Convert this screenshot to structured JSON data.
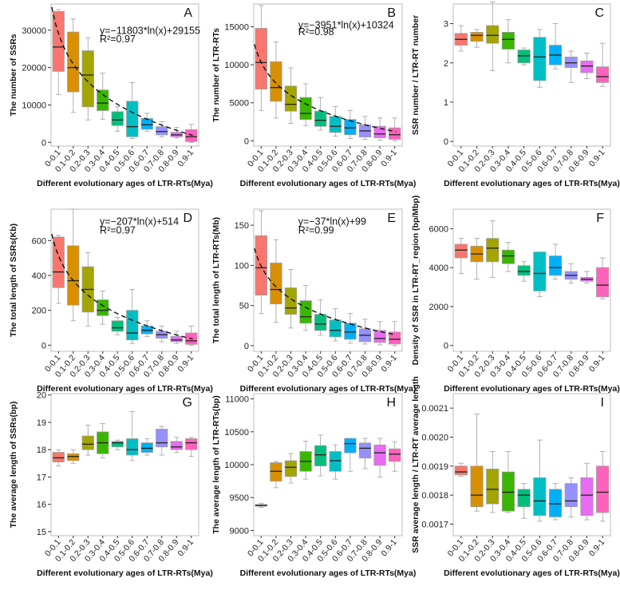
{
  "figure": {
    "colors": [
      "#F8766D",
      "#D89000",
      "#A3A500",
      "#39B600",
      "#00BF7D",
      "#00BFC4",
      "#00B0F6",
      "#9590FF",
      "#E76BF3",
      "#FF62BC"
    ]
  },
  "chart_data": [
    {
      "id": "A",
      "type": "box",
      "panel_label": "A",
      "ylabel": "The number of SSRs",
      "xlabel": "Different evolutionary ages of LTR-RTs(Mya)",
      "ylim": [
        -1000,
        37000
      ],
      "yticks": [
        0,
        10000,
        20000,
        30000
      ],
      "categories": [
        "0-0.1",
        "0.1-0.2",
        "0.2-0.3",
        "0.3-0.4",
        "0.4-0.5",
        "0.5-0.6",
        "0.6-0.7",
        "0.7-0.8",
        "0.8-0.9",
        "0.9-1"
      ],
      "boxes": [
        {
          "whisker_low": 12800,
          "q1": 19000,
          "median": 25500,
          "q3": 35000,
          "whisker_high": 35500
        },
        {
          "whisker_low": 8000,
          "q1": 13500,
          "median": 20000,
          "q3": 29500,
          "whisker_high": 33000
        },
        {
          "whisker_low": 6000,
          "q1": 9500,
          "median": 18000,
          "q3": 24500,
          "whisker_high": 28000
        },
        {
          "whisker_low": 6200,
          "q1": 8500,
          "median": 10500,
          "q3": 14000,
          "whisker_high": 18500
        },
        {
          "whisker_low": 3000,
          "q1": 4500,
          "median": 6000,
          "q3": 8200,
          "whisker_high": 9500
        },
        {
          "whisker_low": 1000,
          "q1": 1500,
          "median": 4200,
          "q3": 11000,
          "whisker_high": 16000
        },
        {
          "whisker_low": 3000,
          "q1": 3500,
          "median": 4700,
          "q3": 6400,
          "whisker_high": 7800
        },
        {
          "whisker_low": 1500,
          "q1": 2000,
          "median": 2900,
          "q3": 4200,
          "whisker_high": 5500
        },
        {
          "whisker_low": 1200,
          "q1": 1500,
          "median": 2000,
          "q3": 2700,
          "whisker_high": 4000
        },
        {
          "whisker_low": 0,
          "q1": 200,
          "median": 1500,
          "q3": 3400,
          "whisker_high": 4800
        }
      ],
      "fit": {
        "a": -11803,
        "b": 29155
      },
      "annotation": [
        "y=−11803*ln(x)+29155",
        "R²=0.97"
      ]
    },
    {
      "id": "B",
      "type": "box",
      "panel_label": "B",
      "ylabel": "The number of LTR-RTs",
      "xlabel": "Different evolutionary ages of LTR-RTs(Mya)",
      "ylim": [
        -700,
        18000
      ],
      "yticks": [
        0,
        5000,
        10000,
        15000
      ],
      "categories": [
        "0-0.1",
        "0.1-0.2",
        "0.2-0.3",
        "0.3-0.4",
        "0.4-0.5",
        "0.5-0.6",
        "0.6-0.7",
        "0.7-0.8",
        "0.8-0.9",
        "0.9-1"
      ],
      "boxes": [
        {
          "whisker_low": 4000,
          "q1": 6800,
          "median": 10300,
          "q3": 14800,
          "whisker_high": 17800
        },
        {
          "whisker_low": 3000,
          "q1": 5200,
          "median": 7000,
          "q3": 10400,
          "whisker_high": 13000
        },
        {
          "whisker_low": 2300,
          "q1": 3900,
          "median": 4800,
          "q3": 7200,
          "whisker_high": 9600
        },
        {
          "whisker_low": 2000,
          "q1": 2800,
          "median": 3600,
          "q3": 5700,
          "whisker_high": 7500
        },
        {
          "whisker_low": 1400,
          "q1": 1900,
          "median": 2700,
          "q3": 3900,
          "whisker_high": 5700
        },
        {
          "whisker_low": 600,
          "q1": 1100,
          "median": 1900,
          "q3": 3200,
          "whisker_high": 4500
        },
        {
          "whisker_low": 300,
          "q1": 800,
          "median": 1700,
          "q3": 2800,
          "whisker_high": 4000
        },
        {
          "whisker_low": 200,
          "q1": 500,
          "median": 1300,
          "q3": 2100,
          "whisker_high": 3200
        },
        {
          "whisker_low": 100,
          "q1": 400,
          "median": 900,
          "q3": 1900,
          "whisker_high": 3000
        },
        {
          "whisker_low": 0,
          "q1": 200,
          "median": 800,
          "q3": 1700,
          "whisker_high": 3000
        }
      ],
      "fit": {
        "a": -3951,
        "b": 10324
      },
      "annotation": [
        "y=−3951*ln(x)+10324",
        "R²=0.98"
      ]
    },
    {
      "id": "C",
      "type": "box",
      "panel_label": "C",
      "ylabel": "SSR number / LTR-RT number",
      "xlabel": "Different evolutionary ages of LTR-RTs(Mya)",
      "ylim": [
        -0.12,
        3.5
      ],
      "yticks": [
        0,
        1,
        2,
        3
      ],
      "categories": [
        "0-0.1",
        "0.1-0.2",
        "0.2-0.3",
        "0.3-0.4",
        "0.4-0.5",
        "0.5-0.6",
        "0.6-0.7",
        "0.7-0.8",
        "0.8-0.9",
        "0.9-1"
      ],
      "boxes": [
        {
          "whisker_low": 2.3,
          "q1": 2.45,
          "median": 2.6,
          "q3": 2.75,
          "whisker_high": 2.95
        },
        {
          "whisker_low": 2.4,
          "q1": 2.55,
          "median": 2.7,
          "q3": 2.78,
          "whisker_high": 2.85
        },
        {
          "whisker_low": 1.8,
          "q1": 2.5,
          "median": 2.7,
          "q3": 2.95,
          "whisker_high": 3.55
        },
        {
          "whisker_low": 2.0,
          "q1": 2.35,
          "median": 2.6,
          "q3": 2.78,
          "whisker_high": 3.1
        },
        {
          "whisker_low": 1.95,
          "q1": 2.0,
          "median": 2.18,
          "q3": 2.33,
          "whisker_high": 2.38
        },
        {
          "whisker_low": 1.38,
          "q1": 1.55,
          "median": 2.15,
          "q3": 2.65,
          "whisker_high": 2.85
        },
        {
          "whisker_low": 1.85,
          "q1": 1.95,
          "median": 2.2,
          "q3": 2.45,
          "whisker_high": 3.0
        },
        {
          "whisker_low": 1.5,
          "q1": 1.88,
          "median": 2.0,
          "q3": 2.15,
          "whisker_high": 2.3
        },
        {
          "whisker_low": 1.6,
          "q1": 1.75,
          "median": 1.92,
          "q3": 2.05,
          "whisker_high": 2.25
        },
        {
          "whisker_low": 1.4,
          "q1": 1.5,
          "median": 1.65,
          "q3": 1.9,
          "whisker_high": 2.5
        }
      ]
    },
    {
      "id": "D",
      "type": "box",
      "panel_label": "D",
      "ylabel": "The total length of SSRs(Kb)",
      "xlabel": "Different evolutionary ages of LTR-RTs(Mya)",
      "ylim": [
        -35,
        780
      ],
      "yticks": [
        0,
        200,
        400,
        600
      ],
      "categories": [
        "0-0.1",
        "0.1-0.2",
        "0.2-0.3",
        "0.3-0.4",
        "0.4-0.5",
        "0.5-0.6",
        "0.6-0.7",
        "0.7-0.8",
        "0.8-0.9",
        "0.9-1"
      ],
      "boxes": [
        {
          "whisker_low": 240,
          "q1": 330,
          "median": 420,
          "q3": 620,
          "whisker_high": 630
        },
        {
          "whisker_low": 140,
          "q1": 230,
          "median": 370,
          "q3": 570,
          "whisker_high": 780
        },
        {
          "whisker_low": 110,
          "q1": 190,
          "median": 320,
          "q3": 450,
          "whisker_high": 530
        },
        {
          "whisker_low": 120,
          "q1": 170,
          "median": 200,
          "q3": 260,
          "whisker_high": 310
        },
        {
          "whisker_low": 60,
          "q1": 80,
          "median": 100,
          "q3": 140,
          "whisker_high": 160
        },
        {
          "whisker_low": 10,
          "q1": 30,
          "median": 70,
          "q3": 200,
          "whisker_high": 320
        },
        {
          "whisker_low": 50,
          "q1": 65,
          "median": 85,
          "q3": 110,
          "whisker_high": 140
        },
        {
          "whisker_low": 20,
          "q1": 40,
          "median": 60,
          "q3": 80,
          "whisker_high": 110
        },
        {
          "whisker_low": 10,
          "q1": 20,
          "median": 30,
          "q3": 50,
          "whisker_high": 80
        },
        {
          "whisker_low": 0,
          "q1": 5,
          "median": 25,
          "q3": 70,
          "whisker_high": 110
        }
      ],
      "fit": {
        "a": -207,
        "b": 514
      },
      "annotation": [
        "y=−207*ln(x)+514",
        "R²=0.97"
      ]
    },
    {
      "id": "E",
      "type": "box",
      "panel_label": "E",
      "ylabel": "The total length of LTR-RTs(Mb)",
      "xlabel": "Different evolutionary ages of LTR-RTs(Mya)",
      "ylim": [
        -7,
        170
      ],
      "yticks": [
        0,
        50,
        100,
        150
      ],
      "categories": [
        "0-0.1",
        "0.1-0.2",
        "0.2-0.3",
        "0.3-0.4",
        "0.4-0.5",
        "0.5-0.6",
        "0.6-0.7",
        "0.7-0.8",
        "0.8-0.9",
        "0.9-1"
      ],
      "boxes": [
        {
          "whisker_low": 40,
          "q1": 63,
          "median": 97,
          "q3": 137,
          "whisker_high": 168
        },
        {
          "whisker_low": 29,
          "q1": 52,
          "median": 70,
          "q3": 103,
          "whisker_high": 132
        },
        {
          "whisker_low": 22,
          "q1": 39,
          "median": 47,
          "q3": 72,
          "whisker_high": 95
        },
        {
          "whisker_low": 19,
          "q1": 28,
          "median": 36,
          "q3": 56,
          "whisker_high": 75
        },
        {
          "whisker_low": 13,
          "q1": 19,
          "median": 27,
          "q3": 39,
          "whisker_high": 57
        },
        {
          "whisker_low": 6,
          "q1": 11,
          "median": 19,
          "q3": 32,
          "whisker_high": 46
        },
        {
          "whisker_low": 3,
          "q1": 8,
          "median": 17,
          "q3": 28,
          "whisker_high": 40
        },
        {
          "whisker_low": 2,
          "q1": 5,
          "median": 13,
          "q3": 21,
          "whisker_high": 33
        },
        {
          "whisker_low": 1,
          "q1": 4,
          "median": 9,
          "q3": 19,
          "whisker_high": 30
        },
        {
          "whisker_low": 0,
          "q1": 2,
          "median": 8,
          "q3": 17,
          "whisker_high": 30
        }
      ],
      "fit": {
        "a": -37,
        "b": 99
      },
      "annotation": [
        "y=−37*ln(x)+99",
        "R²=0.99"
      ]
    },
    {
      "id": "F",
      "type": "box",
      "panel_label": "F",
      "ylabel": "Density of SSR in LTR-RT_region (bp/Mbp)",
      "xlabel": "Different evolutionary ages of LTR-RTs(Mya)",
      "ylim": [
        -300,
        7000
      ],
      "yticks": [
        0,
        2000,
        4000,
        6000
      ],
      "categories": [
        "0-0.1",
        "0.1-0.2",
        "0.2-0.3",
        "0.3-0.4",
        "0.4-0.5",
        "0.5-0.6",
        "0.6-0.7",
        "0.7-0.8",
        "0.8-0.9",
        "0.9-1"
      ],
      "boxes": [
        {
          "whisker_low": 3700,
          "q1": 4500,
          "median": 4900,
          "q3": 5200,
          "whisker_high": 5500
        },
        {
          "whisker_low": 3400,
          "q1": 4300,
          "median": 4700,
          "q3": 5100,
          "whisker_high": 5500
        },
        {
          "whisker_low": 3500,
          "q1": 4300,
          "median": 5000,
          "q3": 5500,
          "whisker_high": 6400
        },
        {
          "whisker_low": 3800,
          "q1": 4200,
          "median": 4600,
          "q3": 4900,
          "whisker_high": 5300
        },
        {
          "whisker_low": 3300,
          "q1": 3600,
          "median": 3800,
          "q3": 4100,
          "whisker_high": 4300
        },
        {
          "whisker_low": 2500,
          "q1": 2800,
          "median": 3700,
          "q3": 4800,
          "whisker_high": 4800
        },
        {
          "whisker_low": 3400,
          "q1": 3600,
          "median": 4000,
          "q3": 4600,
          "whisker_high": 5200
        },
        {
          "whisker_low": 3200,
          "q1": 3400,
          "median": 3600,
          "q3": 3800,
          "whisker_high": 4200
        },
        {
          "whisker_low": 3200,
          "q1": 3300,
          "median": 3400,
          "q3": 3500,
          "whisker_high": 3800
        },
        {
          "whisker_low": 2400,
          "q1": 2500,
          "median": 3100,
          "q3": 4000,
          "whisker_high": 4500
        }
      ]
    },
    {
      "id": "G",
      "type": "box",
      "panel_label": "G",
      "ylabel": "The average length of SSRs(bp)",
      "xlabel": "Different evolutionary ages of LTR-RTs(Mya)",
      "ylim": [
        14.85,
        20.05
      ],
      "yticks": [
        15,
        16,
        17,
        18,
        19,
        20
      ],
      "categories": [
        "0-0.1",
        "0.1-0.2",
        "0.2-0.3",
        "0.3-0.4",
        "0.4-0.5",
        "0.5-0.6",
        "0.6-0.7",
        "0.7-0.8",
        "0.8-0.9",
        "0.9-1"
      ],
      "boxes": [
        {
          "whisker_low": 17.4,
          "q1": 17.55,
          "median": 17.7,
          "q3": 17.9,
          "whisker_high": 18.0
        },
        {
          "whisker_low": 17.5,
          "q1": 17.6,
          "median": 17.75,
          "q3": 17.85,
          "whisker_high": 18.0
        },
        {
          "whisker_low": 17.8,
          "q1": 18.0,
          "median": 18.2,
          "q3": 18.5,
          "whisker_high": 18.9
        },
        {
          "whisker_low": 17.7,
          "q1": 17.85,
          "median": 18.25,
          "q3": 18.65,
          "whisker_high": 18.95
        },
        {
          "whisker_low": 18.0,
          "q1": 18.1,
          "median": 18.25,
          "q3": 18.3,
          "whisker_high": 18.35
        },
        {
          "whisker_low": 17.6,
          "q1": 17.8,
          "median": 18.0,
          "q3": 18.4,
          "whisker_high": 19.4
        },
        {
          "whisker_low": 17.8,
          "q1": 17.9,
          "median": 18.05,
          "q3": 18.25,
          "whisker_high": 18.4
        },
        {
          "whisker_low": 17.8,
          "q1": 18.1,
          "median": 18.25,
          "q3": 18.75,
          "whisker_high": 18.85
        },
        {
          "whisker_low": 17.9,
          "q1": 18.0,
          "median": 18.1,
          "q3": 18.3,
          "whisker_high": 18.45
        },
        {
          "whisker_low": 17.75,
          "q1": 18.0,
          "median": 18.25,
          "q3": 18.4,
          "whisker_high": 18.45
        }
      ]
    },
    {
      "id": "H",
      "type": "box",
      "panel_label": "H",
      "ylabel": "The average length of LTR-RTs(bp)",
      "xlabel": "Different evolutionary ages of LTR-RTs(Mya)",
      "ylim": [
        8920,
        11080
      ],
      "yticks": [
        9000,
        9500,
        10000,
        10500,
        11000
      ],
      "categories": [
        "0-0.1",
        "0.1-0.2",
        "0.2-0.3",
        "0.3-0.4",
        "0.4-0.5",
        "0.5-0.6",
        "0.6-0.7",
        "0.7-0.8",
        "0.8-0.9",
        "0.9-1"
      ],
      "boxes": [
        {
          "whisker_low": 9350,
          "q1": 9370,
          "median": 9380,
          "q3": 9395,
          "whisker_high": 9410
        },
        {
          "whisker_low": 9650,
          "q1": 9750,
          "median": 9900,
          "q3": 10030,
          "whisker_high": 10050
        },
        {
          "whisker_low": 9720,
          "q1": 9820,
          "median": 9960,
          "q3": 10060,
          "whisker_high": 10170
        },
        {
          "whisker_low": 9780,
          "q1": 9900,
          "median": 10050,
          "q3": 10200,
          "whisker_high": 10360
        },
        {
          "whisker_low": 9830,
          "q1": 9980,
          "median": 10150,
          "q3": 10290,
          "whisker_high": 10450
        },
        {
          "whisker_low": 9780,
          "q1": 9900,
          "median": 10060,
          "q3": 10200,
          "whisker_high": 10300
        },
        {
          "whisker_low": 9900,
          "q1": 10180,
          "median": 10320,
          "q3": 10400,
          "whisker_high": 10400
        },
        {
          "whisker_low": 9940,
          "q1": 10100,
          "median": 10250,
          "q3": 10330,
          "whisker_high": 10400
        },
        {
          "whisker_low": 9810,
          "q1": 9990,
          "median": 10180,
          "q3": 10300,
          "whisker_high": 10400
        },
        {
          "whisker_low": 9900,
          "q1": 10050,
          "median": 10160,
          "q3": 10240,
          "whisker_high": 10350
        }
      ]
    },
    {
      "id": "I",
      "type": "box",
      "panel_label": "I",
      "ylabel": "SSR average length / LTR-RT average length",
      "xlabel": "Different evolutionary ages of LTR-RTs(Mya)",
      "ylim": [
        0.00166,
        0.00215
      ],
      "yticks": [
        0.0017,
        0.0018,
        0.0019,
        0.002,
        0.0021
      ],
      "ytick_labels": [
        "0.0017",
        "0.0018",
        "0.0019",
        "0.0020",
        "0.0021"
      ],
      "categories": [
        "0-0.1",
        "0.1-0.2",
        "0.2-0.3",
        "0.3-0.4",
        "0.4-0.5",
        "0.5-0.6",
        "0.6-0.7",
        "0.7-0.8",
        "0.8-0.9",
        "0.9-1"
      ],
      "boxes": [
        {
          "whisker_low": 0.001865,
          "q1": 0.00187,
          "median": 0.00188,
          "q3": 0.0019,
          "whisker_high": 0.00191
        },
        {
          "whisker_low": 0.001745,
          "q1": 0.00176,
          "median": 0.0018,
          "q3": 0.0019,
          "whisker_high": 0.00208
        },
        {
          "whisker_low": 0.00174,
          "q1": 0.00177,
          "median": 0.00182,
          "q3": 0.00189,
          "whisker_high": 0.00195
        },
        {
          "whisker_low": 0.00174,
          "q1": 0.001745,
          "median": 0.00181,
          "q3": 0.00188,
          "whisker_high": 0.00195
        },
        {
          "whisker_low": 0.00172,
          "q1": 0.00176,
          "median": 0.0018,
          "q3": 0.00182,
          "whisker_high": 0.00184
        },
        {
          "whisker_low": 0.00171,
          "q1": 0.00173,
          "median": 0.00178,
          "q3": 0.00186,
          "whisker_high": 0.00199
        },
        {
          "whisker_low": 0.001715,
          "q1": 0.001725,
          "median": 0.00177,
          "q3": 0.00182,
          "whisker_high": 0.00184
        },
        {
          "whisker_low": 0.001725,
          "q1": 0.00176,
          "median": 0.00178,
          "q3": 0.00184,
          "whisker_high": 0.00186
        },
        {
          "whisker_low": 0.001715,
          "q1": 0.00173,
          "median": 0.0018,
          "q3": 0.00186,
          "whisker_high": 0.00191
        },
        {
          "whisker_low": 0.00171,
          "q1": 0.00174,
          "median": 0.00181,
          "q3": 0.0019,
          "whisker_high": 0.00195
        }
      ]
    }
  ]
}
